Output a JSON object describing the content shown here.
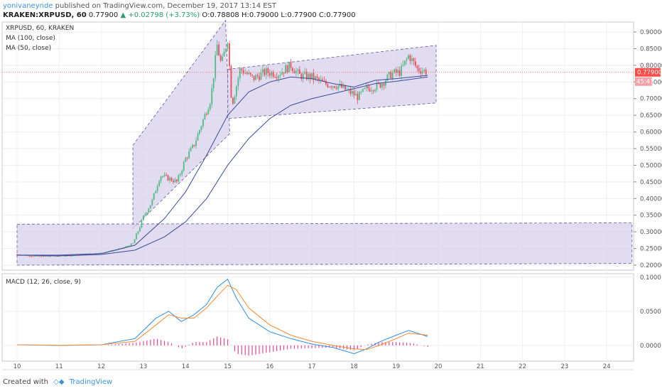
{
  "header": {
    "author": "yonivaneynde",
    "published": "published on TradingView.com, December 19, 2017 13:14 EST",
    "symbol": "KRAKEN:XRPUSD, 60",
    "price": "0.77900",
    "change": "+0.02798 (+3.73%)",
    "ohlc": "O:0.78808 H:0.79000 L:0.77900 C:0.77900"
  },
  "legend": {
    "title": "XRPUSD, 60, KRAKEN",
    "ma100": "MA (100, close)",
    "ma50": "MA (50, close)",
    "macd": "MACD (12, 26, close, 9)"
  },
  "price_tag": "0.77900",
  "timer_tag": "45:41",
  "footer": {
    "created": "Created with",
    "brand": "TradingView"
  },
  "colors": {
    "up": "#53b987",
    "down": "#eb4d5c",
    "channel_fill": "#d8d0ec",
    "channel_edge": "#5b5b9b",
    "ma": "#3c4b9a",
    "macd": "#2f8fe0",
    "signal": "#f7882f",
    "hist": "#e0489a",
    "last_line": "#ff4a4a"
  },
  "chart_data": [
    {
      "type": "candlestick",
      "title": "XRPUSD, 60, KRAKEN",
      "x_ticks": [
        "10",
        "11",
        "12",
        "13",
        "14",
        "15",
        "16",
        "17",
        "18",
        "19",
        "20",
        "21",
        "22",
        "23",
        "24"
      ],
      "y_ticks": [
        "0.90000",
        "0.85000",
        "0.80000",
        "0.75000",
        "0.70000",
        "0.65000",
        "0.60000",
        "0.55000",
        "0.50000",
        "0.45000",
        "0.40000",
        "0.35000",
        "0.30000",
        "0.25000",
        "0.20000"
      ],
      "ylim": [
        0.185,
        0.93
      ],
      "last_price": 0.779,
      "price_path": [
        [
          10.0,
          0.232
        ],
        [
          10.5,
          0.226
        ],
        [
          11.0,
          0.228
        ],
        [
          11.5,
          0.23
        ],
        [
          12.0,
          0.236
        ],
        [
          12.5,
          0.25
        ],
        [
          12.75,
          0.265
        ],
        [
          12.9,
          0.31
        ],
        [
          13.0,
          0.345
        ],
        [
          13.2,
          0.39
        ],
        [
          13.4,
          0.47
        ],
        [
          13.6,
          0.46
        ],
        [
          13.8,
          0.45
        ],
        [
          14.0,
          0.52
        ],
        [
          14.2,
          0.56
        ],
        [
          14.4,
          0.63
        ],
        [
          14.6,
          0.7
        ],
        [
          14.75,
          0.86
        ],
        [
          14.85,
          0.8
        ],
        [
          15.0,
          0.88
        ],
        [
          15.1,
          0.68
        ],
        [
          15.3,
          0.79
        ],
        [
          15.6,
          0.76
        ],
        [
          15.9,
          0.78
        ],
        [
          16.2,
          0.775
        ],
        [
          16.5,
          0.8
        ],
        [
          16.7,
          0.77
        ],
        [
          17.0,
          0.765
        ],
        [
          17.3,
          0.745
        ],
        [
          17.6,
          0.74
        ],
        [
          17.9,
          0.72
        ],
        [
          18.1,
          0.705
        ],
        [
          18.3,
          0.73
        ],
        [
          18.6,
          0.74
        ],
        [
          18.9,
          0.775
        ],
        [
          19.1,
          0.78
        ],
        [
          19.3,
          0.83
        ],
        [
          19.5,
          0.79
        ],
        [
          19.75,
          0.78
        ]
      ],
      "ma100": [
        [
          10.0,
          0.23
        ],
        [
          11.0,
          0.228
        ],
        [
          12.0,
          0.232
        ],
        [
          12.8,
          0.245
        ],
        [
          13.5,
          0.285
        ],
        [
          14.0,
          0.33
        ],
        [
          14.5,
          0.4
        ],
        [
          15.0,
          0.5
        ],
        [
          15.5,
          0.58
        ],
        [
          16.0,
          0.64
        ],
        [
          16.5,
          0.68
        ],
        [
          17.0,
          0.7
        ],
        [
          17.5,
          0.715
        ],
        [
          18.0,
          0.73
        ],
        [
          18.5,
          0.745
        ],
        [
          19.0,
          0.752
        ],
        [
          19.75,
          0.765
        ]
      ],
      "ma50": [
        [
          10.0,
          0.23
        ],
        [
          11.0,
          0.23
        ],
        [
          12.0,
          0.235
        ],
        [
          12.8,
          0.26
        ],
        [
          13.5,
          0.34
        ],
        [
          14.0,
          0.42
        ],
        [
          14.5,
          0.53
        ],
        [
          15.0,
          0.65
        ],
        [
          15.5,
          0.72
        ],
        [
          16.0,
          0.75
        ],
        [
          16.5,
          0.765
        ],
        [
          17.0,
          0.76
        ],
        [
          17.5,
          0.745
        ],
        [
          18.0,
          0.735
        ],
        [
          18.5,
          0.755
        ],
        [
          19.0,
          0.76
        ],
        [
          19.75,
          0.77
        ]
      ],
      "channels": [
        [
          [
            12.75,
            0.56
          ],
          [
            14.95,
            0.935
          ],
          [
            15.05,
            0.595
          ],
          [
            12.75,
            0.31
          ]
        ],
        [
          [
            15.0,
            0.788
          ],
          [
            19.95,
            0.86
          ],
          [
            19.95,
            0.687
          ],
          [
            15.0,
            0.64
          ]
        ],
        [
          [
            10.0,
            0.323
          ],
          [
            24.6,
            0.327
          ],
          [
            24.6,
            0.205
          ],
          [
            10.0,
            0.2
          ]
        ]
      ]
    },
    {
      "type": "line",
      "title": "MACD (12, 26, close, 9)",
      "y_ticks": [
        "0.1000",
        "0.0500",
        "0.0000"
      ],
      "ylim": [
        -0.023,
        0.105
      ],
      "series": [
        {
          "name": "MACD",
          "color": "#2f8fe0",
          "points": [
            [
              10.0,
              0.001
            ],
            [
              11.0,
              0.0
            ],
            [
              12.0,
              0.001
            ],
            [
              12.8,
              0.01
            ],
            [
              13.3,
              0.04
            ],
            [
              13.6,
              0.05
            ],
            [
              13.9,
              0.035
            ],
            [
              14.2,
              0.045
            ],
            [
              14.5,
              0.06
            ],
            [
              14.75,
              0.085
            ],
            [
              15.0,
              0.097
            ],
            [
              15.2,
              0.07
            ],
            [
              15.5,
              0.04
            ],
            [
              16.0,
              0.02
            ],
            [
              16.5,
              0.01
            ],
            [
              17.0,
              0.002
            ],
            [
              17.5,
              -0.003
            ],
            [
              18.0,
              -0.012
            ],
            [
              18.3,
              -0.005
            ],
            [
              18.6,
              0.005
            ],
            [
              19.0,
              0.015
            ],
            [
              19.3,
              0.022
            ],
            [
              19.75,
              0.013
            ]
          ]
        },
        {
          "name": "Signal",
          "color": "#f7882f",
          "points": [
            [
              10.0,
              0.001
            ],
            [
              11.0,
              0.0
            ],
            [
              12.0,
              0.001
            ],
            [
              12.8,
              0.006
            ],
            [
              13.3,
              0.03
            ],
            [
              13.6,
              0.045
            ],
            [
              13.9,
              0.04
            ],
            [
              14.2,
              0.04
            ],
            [
              14.5,
              0.055
            ],
            [
              14.75,
              0.072
            ],
            [
              15.0,
              0.088
            ],
            [
              15.2,
              0.082
            ],
            [
              15.5,
              0.055
            ],
            [
              16.0,
              0.03
            ],
            [
              16.5,
              0.015
            ],
            [
              17.0,
              0.006
            ],
            [
              17.5,
              0.0
            ],
            [
              18.0,
              -0.005
            ],
            [
              18.3,
              -0.006
            ],
            [
              18.6,
              0.0
            ],
            [
              19.0,
              0.01
            ],
            [
              19.3,
              0.018
            ],
            [
              19.75,
              0.015
            ]
          ]
        }
      ]
    }
  ]
}
